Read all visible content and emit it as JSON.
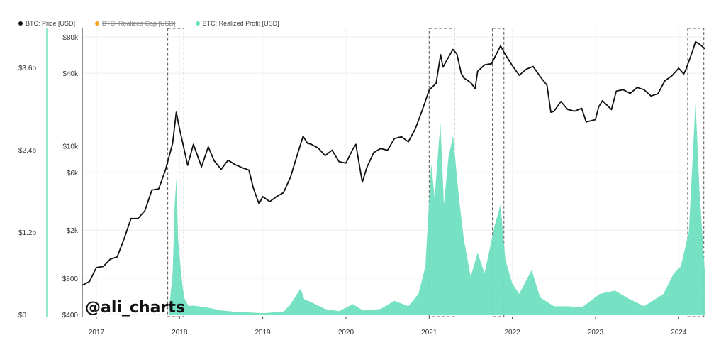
{
  "legend": [
    {
      "label": "BTC: Price [USD]",
      "color": "#111111",
      "struck": false
    },
    {
      "label": "BTC: Realized Cap [USD]",
      "color": "#f5a623",
      "struck": true
    },
    {
      "label": "BTC: Realized Profit [USD]",
      "color": "#6fe0c0",
      "struck": false
    }
  ],
  "watermark": "@ali_charts",
  "chart_data": {
    "type": "line",
    "x_ticks": [
      "2017",
      "2018",
      "2019",
      "2020",
      "2021",
      "2022",
      "2023",
      "2024"
    ],
    "y_left_ticks": [
      "$0",
      "$1.2b",
      "$2.4b",
      "$3.6b"
    ],
    "y_right_ticks": [
      "$400",
      "$800",
      "$2k",
      "$6k",
      "$10k",
      "$40k",
      "$80k"
    ],
    "y_right_scale": "log",
    "highlight_periods": [
      [
        "2017-11-10",
        "2018-01-20"
      ],
      [
        "2021-01-01",
        "2021-04-20"
      ],
      [
        "2021-10-05",
        "2021-11-25"
      ],
      [
        "2024-02-10",
        "2024-04-20"
      ]
    ],
    "series": [
      {
        "name": "BTC: Price [USD]",
        "color": "#111111",
        "axis": "right",
        "points": [
          [
            "2016-11-01",
            700
          ],
          [
            "2016-12-01",
            750
          ],
          [
            "2017-01-01",
            980
          ],
          [
            "2017-02-01",
            1000
          ],
          [
            "2017-03-01",
            1150
          ],
          [
            "2017-04-01",
            1200
          ],
          [
            "2017-05-01",
            1700
          ],
          [
            "2017-06-01",
            2500
          ],
          [
            "2017-07-01",
            2500
          ],
          [
            "2017-08-01",
            2900
          ],
          [
            "2017-09-01",
            4300
          ],
          [
            "2017-10-01",
            4400
          ],
          [
            "2017-11-01",
            6400
          ],
          [
            "2017-12-01",
            10500
          ],
          [
            "2017-12-17",
            19000
          ],
          [
            "2018-01-01",
            13800
          ],
          [
            "2018-02-06",
            6900
          ],
          [
            "2018-03-01",
            10300
          ],
          [
            "2018-04-06",
            6700
          ],
          [
            "2018-05-05",
            9800
          ],
          [
            "2018-06-01",
            7500
          ],
          [
            "2018-07-01",
            6400
          ],
          [
            "2018-08-01",
            7600
          ],
          [
            "2018-09-01",
            7000
          ],
          [
            "2018-10-01",
            6600
          ],
          [
            "2018-11-01",
            6300
          ],
          [
            "2018-11-20",
            4500
          ],
          [
            "2018-12-15",
            3300
          ],
          [
            "2019-01-01",
            3800
          ],
          [
            "2019-02-01",
            3450
          ],
          [
            "2019-03-01",
            3800
          ],
          [
            "2019-04-01",
            4100
          ],
          [
            "2019-05-01",
            5500
          ],
          [
            "2019-06-01",
            8500
          ],
          [
            "2019-06-26",
            12000
          ],
          [
            "2019-07-15",
            10500
          ],
          [
            "2019-08-01",
            10300
          ],
          [
            "2019-09-01",
            9600
          ],
          [
            "2019-10-01",
            8300
          ],
          [
            "2019-11-01",
            9200
          ],
          [
            "2019-12-01",
            7400
          ],
          [
            "2020-01-01",
            7200
          ],
          [
            "2020-02-01",
            9400
          ],
          [
            "2020-02-14",
            10300
          ],
          [
            "2020-03-12",
            5000
          ],
          [
            "2020-04-01",
            6600
          ],
          [
            "2020-05-01",
            8800
          ],
          [
            "2020-06-01",
            9500
          ],
          [
            "2020-07-01",
            9200
          ],
          [
            "2020-08-01",
            11500
          ],
          [
            "2020-09-01",
            11900
          ],
          [
            "2020-10-01",
            10800
          ],
          [
            "2020-11-01",
            13800
          ],
          [
            "2020-12-01",
            19700
          ],
          [
            "2021-01-01",
            29000
          ],
          [
            "2021-02-01",
            33000
          ],
          [
            "2021-02-21",
            57000
          ],
          [
            "2021-03-01",
            45000
          ],
          [
            "2021-04-14",
            63000
          ],
          [
            "2021-05-01",
            57800
          ],
          [
            "2021-05-20",
            40000
          ],
          [
            "2021-06-01",
            36600
          ],
          [
            "2021-07-01",
            33500
          ],
          [
            "2021-07-20",
            29800
          ],
          [
            "2021-08-01",
            41500
          ],
          [
            "2021-09-01",
            47000
          ],
          [
            "2021-10-01",
            48000
          ],
          [
            "2021-11-10",
            67500
          ],
          [
            "2021-12-01",
            57000
          ],
          [
            "2022-01-01",
            46300
          ],
          [
            "2022-02-01",
            38500
          ],
          [
            "2022-03-01",
            43200
          ],
          [
            "2022-04-01",
            45500
          ],
          [
            "2022-05-01",
            37700
          ],
          [
            "2022-06-01",
            31800
          ],
          [
            "2022-06-18",
            19000
          ],
          [
            "2022-07-01",
            19300
          ],
          [
            "2022-08-01",
            23300
          ],
          [
            "2022-09-01",
            20000
          ],
          [
            "2022-10-01",
            19400
          ],
          [
            "2022-11-01",
            20500
          ],
          [
            "2022-11-21",
            15800
          ],
          [
            "2022-12-31",
            16500
          ],
          [
            "2023-01-15",
            21000
          ],
          [
            "2023-02-01",
            23700
          ],
          [
            "2023-03-10",
            20000
          ],
          [
            "2023-04-01",
            28500
          ],
          [
            "2023-05-01",
            29200
          ],
          [
            "2023-06-01",
            27200
          ],
          [
            "2023-07-01",
            30500
          ],
          [
            "2023-08-01",
            29200
          ],
          [
            "2023-09-01",
            25900
          ],
          [
            "2023-10-01",
            27000
          ],
          [
            "2023-11-01",
            34600
          ],
          [
            "2023-12-01",
            38000
          ],
          [
            "2024-01-01",
            44000
          ],
          [
            "2024-01-23",
            39500
          ],
          [
            "2024-02-01",
            42500
          ],
          [
            "2024-03-01",
            61000
          ],
          [
            "2024-03-14",
            73000
          ],
          [
            "2024-04-01",
            69700
          ],
          [
            "2024-04-25",
            64000
          ]
        ]
      },
      {
        "name": "BTC: Realized Profit [USD]",
        "color": "#6fe0c0",
        "axis": "left",
        "points": [
          [
            "2017-11-15",
            0.05
          ],
          [
            "2017-12-01",
            0.6
          ],
          [
            "2017-12-10",
            1.6
          ],
          [
            "2017-12-18",
            2.0
          ],
          [
            "2017-12-25",
            1.1
          ],
          [
            "2018-01-08",
            0.6
          ],
          [
            "2018-01-20",
            0.25
          ],
          [
            "2018-02-10",
            0.12
          ],
          [
            "2018-03-01",
            0.13
          ],
          [
            "2018-05-01",
            0.1
          ],
          [
            "2018-07-01",
            0.06
          ],
          [
            "2018-09-01",
            0.04
          ],
          [
            "2018-11-01",
            0.03
          ],
          [
            "2019-01-01",
            0.02
          ],
          [
            "2019-04-01",
            0.04
          ],
          [
            "2019-05-01",
            0.15
          ],
          [
            "2019-06-15",
            0.38
          ],
          [
            "2019-07-01",
            0.22
          ],
          [
            "2019-08-01",
            0.18
          ],
          [
            "2019-10-01",
            0.08
          ],
          [
            "2019-12-01",
            0.05
          ],
          [
            "2020-02-01",
            0.15
          ],
          [
            "2020-03-15",
            0.06
          ],
          [
            "2020-06-01",
            0.08
          ],
          [
            "2020-08-01",
            0.2
          ],
          [
            "2020-10-01",
            0.12
          ],
          [
            "2020-11-15",
            0.3
          ],
          [
            "2020-12-15",
            0.7
          ],
          [
            "2021-01-10",
            2.2
          ],
          [
            "2021-01-25",
            1.7
          ],
          [
            "2021-02-20",
            2.8
          ],
          [
            "2021-03-05",
            1.6
          ],
          [
            "2021-03-25",
            2.3
          ],
          [
            "2021-04-15",
            2.6
          ],
          [
            "2021-05-10",
            1.7
          ],
          [
            "2021-06-01",
            1.1
          ],
          [
            "2021-07-01",
            0.55
          ],
          [
            "2021-08-01",
            0.9
          ],
          [
            "2021-09-01",
            0.6
          ],
          [
            "2021-10-15",
            1.3
          ],
          [
            "2021-11-10",
            1.6
          ],
          [
            "2021-12-01",
            0.8
          ],
          [
            "2022-01-01",
            0.45
          ],
          [
            "2022-02-01",
            0.3
          ],
          [
            "2022-03-25",
            0.65
          ],
          [
            "2022-05-01",
            0.25
          ],
          [
            "2022-07-01",
            0.12
          ],
          [
            "2022-09-01",
            0.12
          ],
          [
            "2022-11-01",
            0.1
          ],
          [
            "2023-01-20",
            0.3
          ],
          [
            "2023-03-25",
            0.35
          ],
          [
            "2023-06-01",
            0.22
          ],
          [
            "2023-08-01",
            0.12
          ],
          [
            "2023-10-25",
            0.3
          ],
          [
            "2023-12-10",
            0.6
          ],
          [
            "2024-01-10",
            0.7
          ],
          [
            "2024-02-15",
            1.2
          ],
          [
            "2024-03-14",
            3.1
          ],
          [
            "2024-04-01",
            1.8
          ],
          [
            "2024-04-25",
            0.6
          ]
        ]
      }
    ]
  }
}
